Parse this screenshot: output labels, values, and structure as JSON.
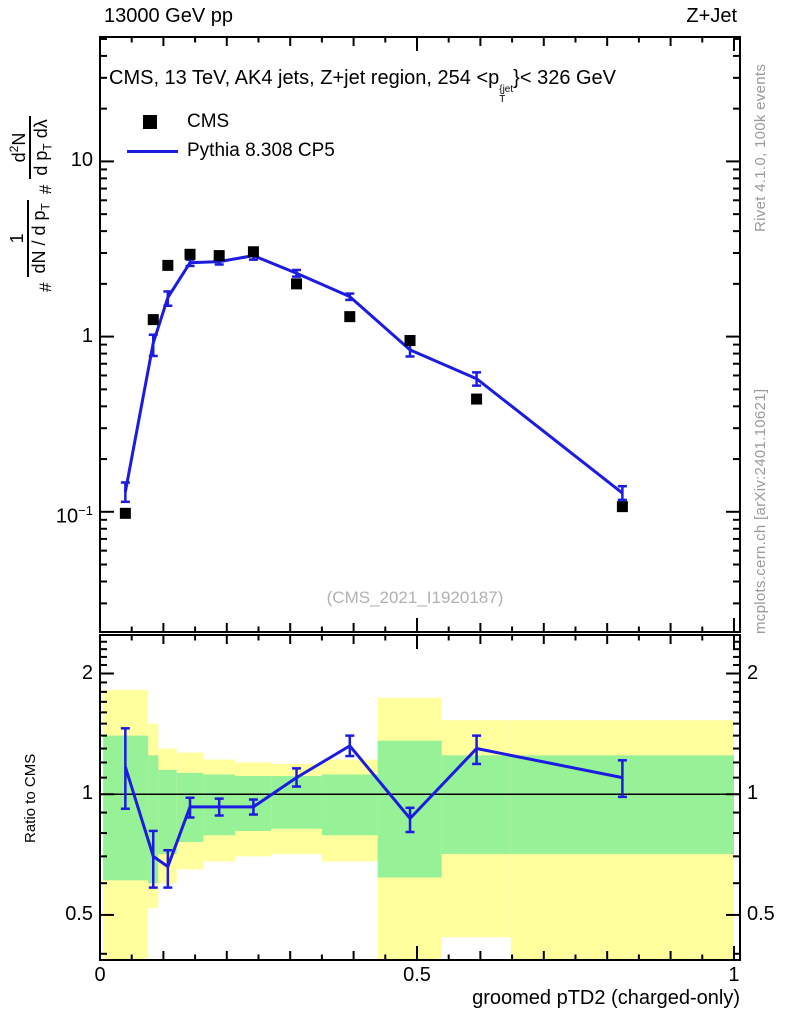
{
  "header": {
    "left": "13000 GeV pp",
    "right": "Z+Jet"
  },
  "main_panel": {
    "title_pre": "CMS, 13 TeV, AK4 jets, Z+jet region, 254 <p",
    "title_sup": "{jet",
    "title_sub": "T",
    "title_post": "}< 326 GeV",
    "legend": [
      {
        "label": "CMS",
        "marker": "filled-square",
        "color": "#000000"
      },
      {
        "label": "Pythia 8.308 CP5",
        "marker": "line",
        "color": "#1c1ce0"
      }
    ],
    "watermark": "(CMS_2021_I1920187)",
    "ylabel": {
      "hash1": "#",
      "f1_num": "1",
      "f1_den_pre": "dN / d p",
      "f1_den_sub": "T",
      "hash2": "#",
      "f2_num_pre": "d",
      "f2_num_sup": "2",
      "f2_num_post": "N",
      "f2_den_pre": "d p",
      "f2_den_sub": "T",
      "f2_den_post": " dλ"
    }
  },
  "ratio_panel": {
    "ylabel": "Ratio to CMS"
  },
  "side_notes": {
    "top": "Rivet 4.1.0,  100k events",
    "bottom": "mcplots.cern.ch [arXiv:2401.10621]"
  },
  "colors": {
    "mc_line": "#1c1ce0",
    "data_marker": "#000000",
    "band_yellow": "#ffff9e",
    "band_green": "#97f197",
    "gray_text": "#9a9a9a",
    "frame": "#000000"
  },
  "chart_data": {
    "type": "line",
    "title": "CMS, 13 TeV, AK4 jets, Z+jet region, 254 < pT_jet < 326 GeV",
    "xlabel": "groomed pTD2 (charged-only)",
    "ylabel_main": "# 1/(dN/dpT) # d2N/(dpT dlambda)",
    "ylabel_ratio": "Ratio to CMS",
    "x": [
      0.04,
      0.084,
      0.107,
      0.142,
      0.188,
      0.242,
      0.31,
      0.394,
      0.489,
      0.594,
      0.824
    ],
    "series": [
      {
        "name": "CMS",
        "type": "scatter",
        "marker": "filled-square",
        "color": "#000000",
        "values": [
          0.098,
          1.25,
          2.55,
          2.95,
          2.9,
          3.05,
          2.0,
          1.3,
          0.95,
          0.44,
          0.107
        ]
      },
      {
        "name": "Pythia 8.308 CP5",
        "type": "line",
        "color": "#1c1ce0",
        "values": [
          0.13,
          0.92,
          1.67,
          2.64,
          2.68,
          2.9,
          2.3,
          1.69,
          0.84,
          0.575,
          0.128
        ],
        "yerr_up": [
          0.017,
          0.105,
          0.14,
          0.11,
          0.1,
          0.17,
          0.1,
          0.07,
          0.075,
          0.05,
          0.012
        ],
        "yerr_down": [
          0.016,
          0.145,
          0.17,
          0.11,
          0.1,
          0.15,
          0.1,
          0.07,
          0.07,
          0.05,
          0.011
        ]
      }
    ],
    "ratio": {
      "name": "Pythia / CMS",
      "values": [
        1.17,
        0.7,
        0.66,
        0.93,
        0.93,
        0.93,
        1.1,
        1.32,
        0.87,
        1.3,
        1.1
      ],
      "yerr_up": [
        0.29,
        0.11,
        0.065,
        0.05,
        0.045,
        0.04,
        0.06,
        0.08,
        0.055,
        0.1,
        0.115
      ],
      "yerr_down": [
        0.25,
        0.115,
        0.075,
        0.055,
        0.045,
        0.04,
        0.055,
        0.075,
        0.065,
        0.11,
        0.115
      ]
    },
    "bands": {
      "bin_edges": [
        0.005,
        0.076,
        0.092,
        0.121,
        0.163,
        0.213,
        0.27,
        0.35,
        0.438,
        0.539,
        0.648,
        1.0
      ],
      "yellow_lo": [
        0.36,
        0.52,
        0.6,
        0.65,
        0.68,
        0.7,
        0.71,
        0.68,
        0.36,
        0.44,
        0.36
      ],
      "yellow_hi": [
        1.82,
        1.5,
        1.3,
        1.27,
        1.22,
        1.2,
        1.19,
        1.22,
        1.74,
        1.53,
        1.53
      ],
      "green_lo": [
        0.61,
        0.6,
        0.71,
        0.76,
        0.79,
        0.81,
        0.82,
        0.79,
        0.62,
        0.71,
        0.71
      ],
      "green_hi": [
        1.4,
        1.25,
        1.15,
        1.13,
        1.12,
        1.11,
        1.11,
        1.12,
        1.36,
        1.25,
        1.25
      ]
    },
    "axes": {
      "x": {
        "min": 0,
        "max": 1.0095,
        "ticks_labeled": [
          {
            "v": 0,
            "label": "0"
          },
          {
            "v": 0.5,
            "label": "0.5"
          },
          {
            "v": 1,
            "label": "1"
          }
        ],
        "minor_step": 0.05
      },
      "y_main": {
        "scale": "log",
        "min": 0.0206,
        "max": 51.3,
        "ticks_labeled": [
          {
            "v": 10,
            "label": "10"
          },
          {
            "v": 1,
            "label": "1"
          },
          {
            "v": 0.1,
            "label": "10",
            "sup": "−1"
          }
        ]
      },
      "y_ratio": {
        "scale": "log",
        "min": 0.386,
        "max": 2.495,
        "ticks_labeled": [
          {
            "v": 2,
            "label": "2"
          },
          {
            "v": 1,
            "label": "1"
          },
          {
            "v": 0.5,
            "label": "0.5"
          }
        ]
      },
      "grid": false,
      "legend_position": "top-left-inside"
    }
  }
}
